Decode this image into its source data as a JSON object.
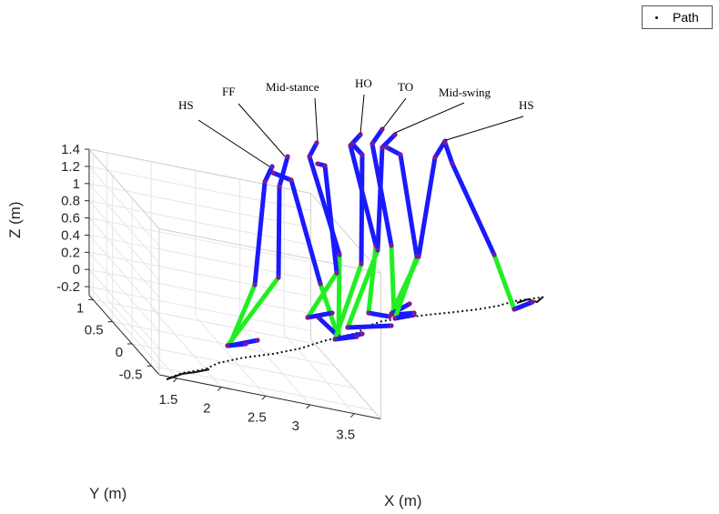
{
  "chart_data": {
    "type": "line",
    "title": "",
    "xlabel": "X (m)",
    "ylabel": "Y (m)",
    "zlabel": "Z (m)",
    "xlim": [
      1.3,
      3.8
    ],
    "ylim": [
      -0.7,
      1.1
    ],
    "zlim": [
      -0.3,
      1.4
    ],
    "x_ticks": [
      "1.5",
      "2",
      "2.5",
      "3",
      "3.5"
    ],
    "y_ticks": [
      "-0.5",
      "0",
      "0.5",
      "1"
    ],
    "z_ticks": [
      "-0.2",
      "0",
      "0.2",
      "0.4",
      "0.6",
      "0.8",
      "1",
      "1.2",
      "1.4"
    ],
    "grid": true,
    "legend": {
      "position": "top-right",
      "entries": [
        "Path"
      ]
    },
    "series": [
      {
        "name": "Path",
        "color": "#000000",
        "style": "dotted"
      }
    ],
    "segment_colors": {
      "upper": "#1a1aff",
      "lower": "#22ee22",
      "joint": "#7a1a9a"
    },
    "phases": [
      {
        "label": "HS"
      },
      {
        "label": "FF"
      },
      {
        "label": "Mid-stance"
      },
      {
        "label": "HO"
      },
      {
        "label": "TO"
      },
      {
        "label": "Mid-swing"
      },
      {
        "label": "HS"
      }
    ]
  }
}
